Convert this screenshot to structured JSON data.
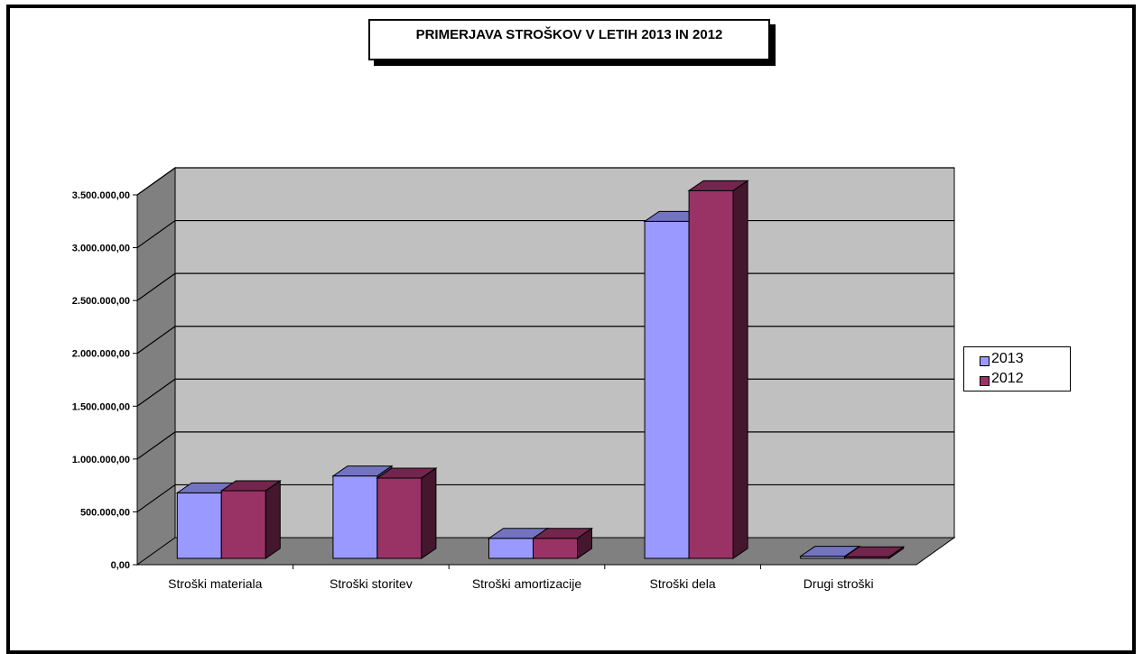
{
  "chart_data": {
    "type": "bar",
    "title": "PRIMERJAVA  STROŠKOV V LETIH 2013 IN 2012",
    "categories": [
      "Stroški materiala",
      "Stroški storitev",
      "Stroški amortizacije",
      "Stroški dela",
      "Drugi stroški"
    ],
    "series": [
      {
        "name": "2013",
        "values": [
          620000,
          780000,
          190000,
          3190000,
          20000
        ],
        "color": "#9999ff"
      },
      {
        "name": "2012",
        "values": [
          640000,
          760000,
          190000,
          3480000,
          15000
        ],
        "color": "#993366"
      }
    ],
    "y_ticks": [
      "0,00",
      "500.000,00",
      "1.000.000,00",
      "1.500.000,00",
      "2.000.000,00",
      "2.500.000,00",
      "3.000.000,00",
      "3.500.000,00"
    ],
    "ylim": [
      0,
      3500000
    ],
    "grid": true,
    "legend_position": "right",
    "colors": {
      "plot_wall": "#c0c0c0",
      "side_wall": "#808080",
      "floor": "#808080",
      "gridline": "#000000"
    }
  }
}
